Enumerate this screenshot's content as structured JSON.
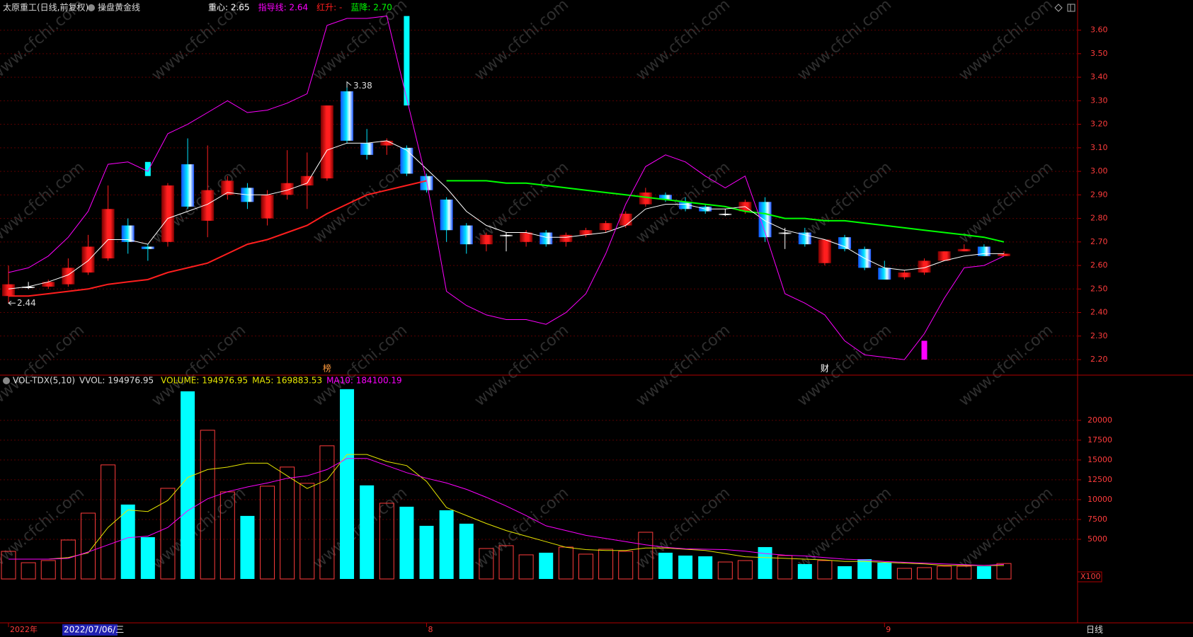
{
  "header": {
    "title": "太原重工(日线,前复权)",
    "indicator": "操盘黄金线",
    "cursor_date": "2022/07/06/三",
    "period": "日线",
    "volume_unit": "X100",
    "watermark": "www.cfchi.com"
  },
  "chart_data": [
    {
      "type": "candlestick",
      "categories": [
        "2022年",
        null,
        null,
        null,
        null,
        null,
        null,
        null,
        null,
        null,
        null,
        null,
        null,
        null,
        null,
        null,
        null,
        null,
        null,
        null,
        null,
        "8",
        null,
        null,
        null,
        null,
        null,
        null,
        null,
        null,
        null,
        null,
        null,
        null,
        null,
        null,
        null,
        null,
        null,
        null,
        null,
        null,
        null,
        null,
        "9",
        null,
        null,
        null,
        null,
        null,
        null
      ],
      "open": [
        2.47,
        2.51,
        2.51,
        2.52,
        2.57,
        2.63,
        2.77,
        2.68,
        2.7,
        3.03,
        2.79,
        2.9,
        2.93,
        2.8,
        2.9,
        2.94,
        2.97,
        3.34,
        3.12,
        3.11,
        3.1,
        2.98,
        2.88,
        2.77,
        2.69,
        2.73,
        2.7,
        2.74,
        2.7,
        2.73,
        2.75,
        2.77,
        2.86,
        2.9,
        2.87,
        2.85,
        2.82,
        2.83,
        2.87,
        2.74,
        2.74,
        2.61,
        2.72,
        2.67,
        2.59,
        2.55,
        2.57,
        2.62,
        2.66,
        2.68,
        2.64
      ],
      "high": [
        2.6,
        2.53,
        2.54,
        2.63,
        2.73,
        2.94,
        2.8,
        2.69,
        2.95,
        3.14,
        3.11,
        2.98,
        2.95,
        2.92,
        3.09,
        3.08,
        3.28,
        3.38,
        3.18,
        3.14,
        3.11,
        2.99,
        2.89,
        2.78,
        2.74,
        2.74,
        2.75,
        2.75,
        2.74,
        2.76,
        2.79,
        2.83,
        2.93,
        2.91,
        2.89,
        2.86,
        2.84,
        2.88,
        2.89,
        2.76,
        2.76,
        2.71,
        2.73,
        2.68,
        2.62,
        2.58,
        2.63,
        2.66,
        2.69,
        2.69,
        2.66
      ],
      "low": [
        2.44,
        2.5,
        2.5,
        2.51,
        2.56,
        2.62,
        2.65,
        2.62,
        2.68,
        2.84,
        2.72,
        2.88,
        2.84,
        2.77,
        2.88,
        2.84,
        2.96,
        3.12,
        3.05,
        3.07,
        2.98,
        2.91,
        2.7,
        2.65,
        2.66,
        2.66,
        2.68,
        2.68,
        2.68,
        2.72,
        2.74,
        2.76,
        2.85,
        2.87,
        2.83,
        2.82,
        2.81,
        2.82,
        2.7,
        2.67,
        2.68,
        2.6,
        2.66,
        2.58,
        2.54,
        2.54,
        2.56,
        2.62,
        2.66,
        2.64,
        2.64
      ],
      "close": [
        2.52,
        2.51,
        2.53,
        2.59,
        2.68,
        2.84,
        2.7,
        2.67,
        2.94,
        2.85,
        2.92,
        2.96,
        2.87,
        2.9,
        2.95,
        2.98,
        3.28,
        3.13,
        3.07,
        3.13,
        2.99,
        2.92,
        2.75,
        2.69,
        2.73,
        2.73,
        2.74,
        2.69,
        2.73,
        2.75,
        2.78,
        2.82,
        2.91,
        2.88,
        2.84,
        2.83,
        2.82,
        2.87,
        2.72,
        2.74,
        2.69,
        2.71,
        2.67,
        2.59,
        2.54,
        2.57,
        2.62,
        2.66,
        2.67,
        2.64,
        2.65
      ],
      "up_color": "#ff1e1e",
      "down_color": "#00e5ff",
      "flat_color": "#ffffff",
      "series": [
        {
          "name": "重心: 2.65",
          "color": "#ffffff",
          "values": [
            2.5,
            2.51,
            2.53,
            2.56,
            2.62,
            2.71,
            2.71,
            2.69,
            2.8,
            2.83,
            2.86,
            2.91,
            2.9,
            2.9,
            2.92,
            2.95,
            3.09,
            3.12,
            3.12,
            3.13,
            3.09,
            3.01,
            2.93,
            2.83,
            2.77,
            2.74,
            2.74,
            2.72,
            2.72,
            2.73,
            2.74,
            2.77,
            2.84,
            2.86,
            2.86,
            2.84,
            2.84,
            2.85,
            2.79,
            2.75,
            2.73,
            2.71,
            2.68,
            2.63,
            2.59,
            2.58,
            2.59,
            2.62,
            2.64,
            2.65,
            2.65
          ]
        },
        {
          "name": "指导线: 2.64",
          "color": "#ff00ff",
          "values": [
            2.57,
            2.59,
            2.64,
            2.72,
            2.83,
            3.03,
            3.04,
            3.0,
            3.16,
            3.2,
            3.25,
            3.3,
            3.25,
            3.26,
            3.29,
            3.33,
            3.62,
            3.65,
            3.65,
            3.66,
            3.31,
            2.96,
            2.49,
            2.43,
            2.39,
            2.37,
            2.37,
            2.35,
            2.4,
            2.48,
            2.65,
            2.86,
            3.02,
            3.07,
            3.04,
            2.98,
            2.93,
            2.98,
            2.74,
            2.48,
            2.44,
            2.39,
            2.28,
            2.22,
            2.21,
            2.2,
            2.31,
            2.46,
            2.59,
            2.6,
            2.64
          ]
        },
        {
          "name": "红升: -",
          "color": "#ff1e1e",
          "values": [
            2.47,
            2.47,
            2.48,
            2.49,
            2.5,
            2.52,
            2.53,
            2.54,
            2.57,
            2.59,
            2.61,
            2.65,
            2.69,
            2.71,
            2.74,
            2.77,
            2.82,
            2.86,
            2.9,
            2.92,
            2.94,
            2.96,
            null,
            null,
            null,
            null,
            null,
            null,
            null,
            null,
            null,
            null,
            null,
            null,
            null,
            null,
            null,
            null,
            null,
            null,
            null,
            null,
            null,
            null,
            null,
            null,
            null,
            null,
            null,
            null,
            null
          ]
        },
        {
          "name": "蓝降: 2.70",
          "color": "#00ff00",
          "values": [
            null,
            null,
            null,
            null,
            null,
            null,
            null,
            null,
            null,
            null,
            null,
            null,
            null,
            null,
            null,
            null,
            null,
            null,
            null,
            null,
            null,
            null,
            2.96,
            2.96,
            2.96,
            2.95,
            2.95,
            2.94,
            2.93,
            2.92,
            2.91,
            2.9,
            2.89,
            2.88,
            2.87,
            2.86,
            2.85,
            2.83,
            2.82,
            2.8,
            2.8,
            2.79,
            2.79,
            2.78,
            2.77,
            2.76,
            2.75,
            2.74,
            2.73,
            2.72,
            2.7
          ]
        }
      ],
      "signals": [
        {
          "color": "#00ffff",
          "index": 7,
          "high": 3.04,
          "low": 2.98
        },
        {
          "color": "#00ffff",
          "index": 20,
          "high": 3.66,
          "low": 3.28
        },
        {
          "color": "#ff00ff",
          "index": 46,
          "high": 2.28,
          "low": 2.2
        }
      ],
      "high_mark": {
        "index": 17,
        "value": 3.38
      },
      "low_mark": {
        "index": 0,
        "value": 2.44
      },
      "events": [
        {
          "index": 16,
          "label": "榜",
          "color": "#ff9a3c"
        },
        {
          "index": 41,
          "label": "财",
          "color": "#ffffff"
        }
      ],
      "ylim": [
        2.14,
        3.68
      ],
      "yticks": [
        {
          "value": 2.2,
          "label": "2.20"
        },
        {
          "value": 2.3,
          "label": "2.30"
        },
        {
          "value": 2.4,
          "label": "2.40"
        },
        {
          "value": 2.5,
          "label": "2.50"
        },
        {
          "value": 2.6,
          "label": "2.60"
        },
        {
          "value": 2.7,
          "label": "2.70"
        },
        {
          "value": 2.8,
          "label": "2.80"
        },
        {
          "value": 2.9,
          "label": "2.90"
        },
        {
          "value": 3.0,
          "label": "3.00"
        },
        {
          "value": 3.1,
          "label": "3.10"
        },
        {
          "value": 3.2,
          "label": "3.20"
        },
        {
          "value": 3.3,
          "label": "3.30"
        },
        {
          "value": 3.4,
          "label": "3.40"
        },
        {
          "value": 3.5,
          "label": "3.50"
        },
        {
          "value": 3.6,
          "label": "3.60"
        }
      ],
      "grid": true
    },
    {
      "type": "volume",
      "title": "VOL-TDX(5,10)",
      "subtitle": "VVOL: 194976.95",
      "up_color": "#ff3c3c",
      "down_color": "#00ffff",
      "series": [
        {
          "name": "VOLUME: 194976.95",
          "color": "#e6e600",
          "values": [
            3480,
            2050,
            2320,
            4910,
            8300,
            14380,
            9380,
            5270,
            11430,
            23660,
            18750,
            10980,
            7950,
            11700,
            14110,
            12060,
            16790,
            23930,
            11800,
            9550,
            9110,
            6700,
            8660,
            6970,
            3840,
            4200,
            3040,
            3310,
            4020,
            3130,
            3750,
            3480,
            5890,
            3310,
            2950,
            2860,
            2140,
            2320,
            4020,
            2950,
            1880,
            2320,
            1610,
            2500,
            2050,
            1340,
            1430,
            1610,
            1610,
            1610,
            1949.77
          ]
        },
        {
          "name": "MA5: 169883.53",
          "color": "#e6e600",
          "values": [
            2500,
            2500,
            2500,
            2700,
            3300,
            6500,
            8700,
            8500,
            9900,
            12800,
            13800,
            14100,
            14600,
            14600,
            13000,
            11400,
            12500,
            15700,
            15700,
            14800,
            14300,
            12300,
            9000,
            8000,
            7000,
            6100,
            5400,
            4700,
            4000,
            3700,
            3600,
            3600,
            3900,
            3900,
            3750,
            3600,
            3200,
            2800,
            2700,
            2600,
            2500,
            2400,
            2200,
            2200,
            2100,
            2000,
            1900,
            1700,
            1700,
            1700,
            1698.84
          ]
        },
        {
          "name": "MA10: 184100.19",
          "color": "#ff00ff",
          "values": [
            2500,
            2500,
            2500,
            2600,
            3400,
            4300,
            5200,
            5400,
            6500,
            8600,
            10100,
            11000,
            11600,
            12100,
            12700,
            13000,
            13800,
            15200,
            15200,
            14300,
            13400,
            12700,
            12100,
            11300,
            10300,
            9200,
            8000,
            6700,
            6100,
            5500,
            5100,
            4700,
            4300,
            4000,
            3800,
            3750,
            3700,
            3500,
            3200,
            3000,
            2900,
            2700,
            2500,
            2400,
            2200,
            2100,
            2000,
            1900,
            1800,
            1700,
            1841.0
          ]
        }
      ],
      "ylim": [
        0,
        25700
      ],
      "yticks": [
        5000,
        7500,
        10000,
        12500,
        15000,
        17500,
        20000
      ],
      "grid": true
    }
  ]
}
